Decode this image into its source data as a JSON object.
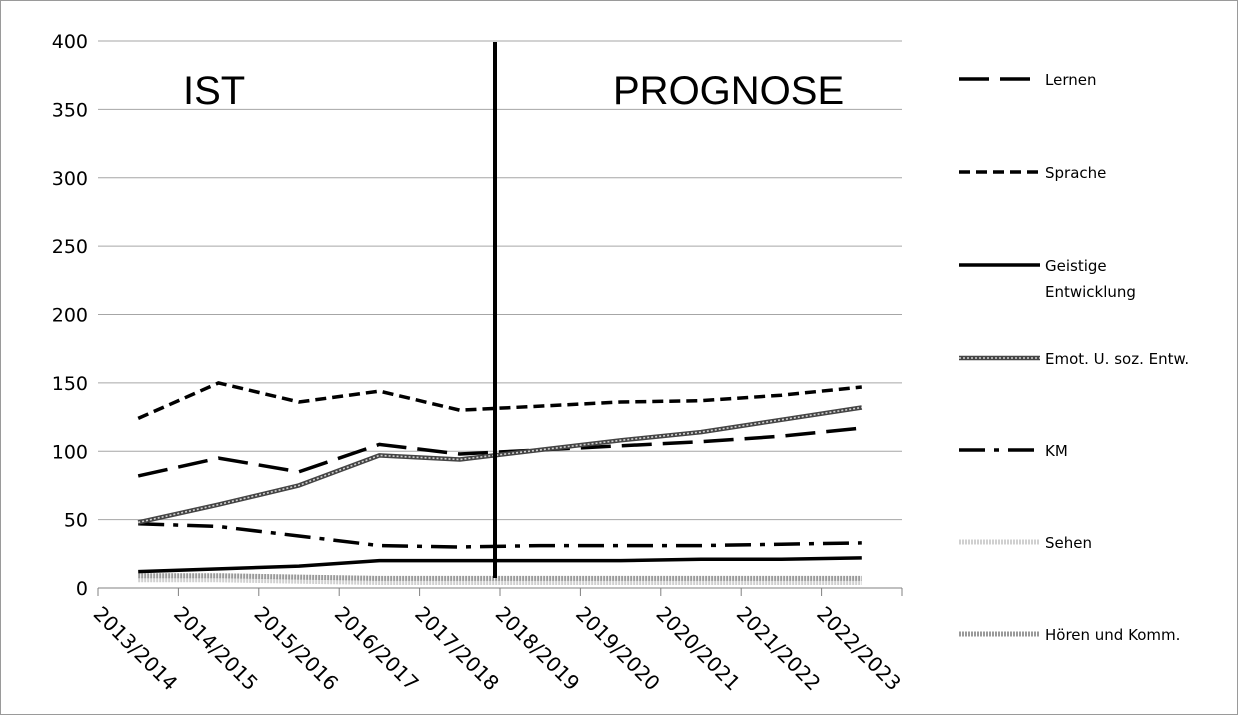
{
  "chart_data": {
    "type": "line",
    "title": "",
    "xlabel": "",
    "ylabel": "",
    "categories": [
      "2013/2014",
      "2014/2015",
      "2015/2016",
      "2016/2017",
      "2017/2018",
      "2018/2019",
      "2019/2020",
      "2020/2021",
      "2021/2022",
      "2022/2023"
    ],
    "ylim": [
      0,
      400
    ],
    "yticks": [
      0,
      50,
      100,
      150,
      200,
      250,
      300,
      350,
      400
    ],
    "grid": "horizontal",
    "legend_position": "right",
    "annotations": {
      "ist_label": "IST",
      "prognose_label": "PROGNOSE",
      "divider_between": [
        "2017/2018",
        "2018/2019"
      ]
    },
    "series": [
      {
        "name": "Lernen",
        "style": "long-dash",
        "color": "#000000",
        "values": [
          82,
          95,
          85,
          105,
          98,
          101,
          104,
          107,
          111,
          117
        ]
      },
      {
        "name": "Sprache",
        "style": "short-dash",
        "color": "#000000",
        "values": [
          124,
          150,
          136,
          144,
          130,
          133,
          136,
          137,
          141,
          147
        ]
      },
      {
        "name": "Geistige Entwicklung",
        "style": "solid",
        "color": "#000000",
        "values": [
          12,
          14,
          16,
          20,
          20,
          20,
          20,
          21,
          21,
          22
        ]
      },
      {
        "name": "Emot. U. soz. Entw.",
        "style": "double",
        "color": "#333333",
        "values": [
          48,
          61,
          75,
          97,
          94,
          101,
          108,
          114,
          123,
          132
        ]
      },
      {
        "name": "KM",
        "style": "dash-dot",
        "color": "#000000",
        "values": [
          47,
          45,
          38,
          31,
          30,
          31,
          31,
          31,
          32,
          33
        ]
      },
      {
        "name": "Sehen",
        "style": "light-pattern",
        "color": "#bbbbbb",
        "values": [
          6,
          6,
          5,
          4,
          4,
          4,
          4,
          4,
          4,
          4
        ]
      },
      {
        "name": "Hören und Komm.",
        "style": "dark-pattern",
        "color": "#888888",
        "values": [
          9,
          9,
          8,
          7,
          7,
          7,
          7,
          7,
          7,
          7
        ]
      }
    ]
  }
}
